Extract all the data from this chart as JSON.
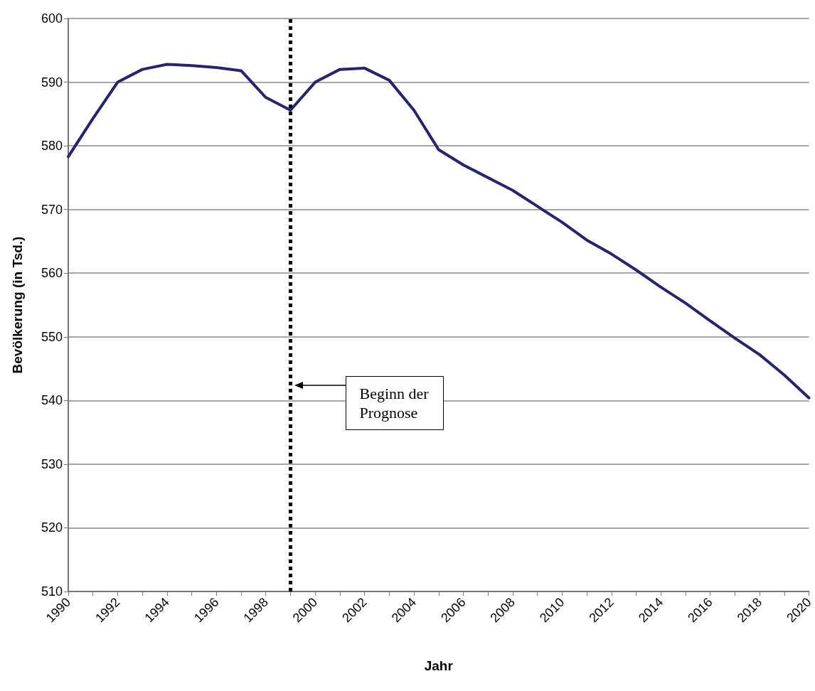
{
  "chart_data": {
    "type": "line",
    "xlabel": "Jahr",
    "ylabel": "Bevölkerung (in Tsd.)",
    "x": [
      1990,
      1991,
      1992,
      1993,
      1994,
      1995,
      1996,
      1997,
      1998,
      1999,
      2000,
      2001,
      2002,
      2003,
      2004,
      2005,
      2006,
      2007,
      2008,
      2009,
      2010,
      2011,
      2012,
      2013,
      2014,
      2015,
      2016,
      2017,
      2018,
      2019,
      2020
    ],
    "series": [
      {
        "color": "#27246e",
        "values": [
          578.3,
          584.3,
          590.0,
          592.0,
          592.8,
          592.6,
          592.3,
          591.8,
          587.6,
          585.6,
          590.0,
          592.0,
          592.2,
          590.3,
          585.6,
          579.4,
          577.0,
          575.0,
          573.0,
          570.5,
          568.0,
          565.2,
          563.0,
          560.5,
          557.8,
          555.3,
          552.5,
          549.8,
          547.2,
          544.0,
          540.4
        ]
      }
    ],
    "xlim": [
      1990,
      2020
    ],
    "xticks": [
      1990,
      {
        "value": 1991,
        "label": null
      },
      1992,
      {
        "value": 1993,
        "label": null
      },
      1994,
      {
        "value": 1995,
        "label": null
      },
      1996,
      {
        "value": 1997,
        "label": null
      },
      1998,
      {
        "value": 1999,
        "label": null
      },
      2000,
      {
        "value": 2001,
        "label": null
      },
      2002,
      {
        "value": 2003,
        "label": null
      },
      2004,
      {
        "value": 2005,
        "label": null
      },
      2006,
      {
        "value": 2007,
        "label": null
      },
      2008,
      {
        "value": 2009,
        "label": null
      },
      2010,
      {
        "value": 2011,
        "label": null
      },
      2012,
      {
        "value": 2013,
        "label": null
      },
      2014,
      {
        "value": 2015,
        "label": null
      },
      2016,
      {
        "value": 2017,
        "label": null
      },
      2018,
      {
        "value": 2019,
        "label": null
      },
      2020
    ],
    "ylim": [
      510,
      600
    ],
    "yticks": [
      510,
      520,
      530,
      540,
      550,
      560,
      570,
      580,
      590,
      600
    ],
    "grid": "y",
    "marker": "none",
    "line_style": "solid",
    "ref_lines": [
      {
        "axis": "x",
        "value": 1999,
        "color": "#000000",
        "line_style": "dotted"
      }
    ],
    "annotations": [
      "Beginn der\nPrognose"
    ]
  }
}
